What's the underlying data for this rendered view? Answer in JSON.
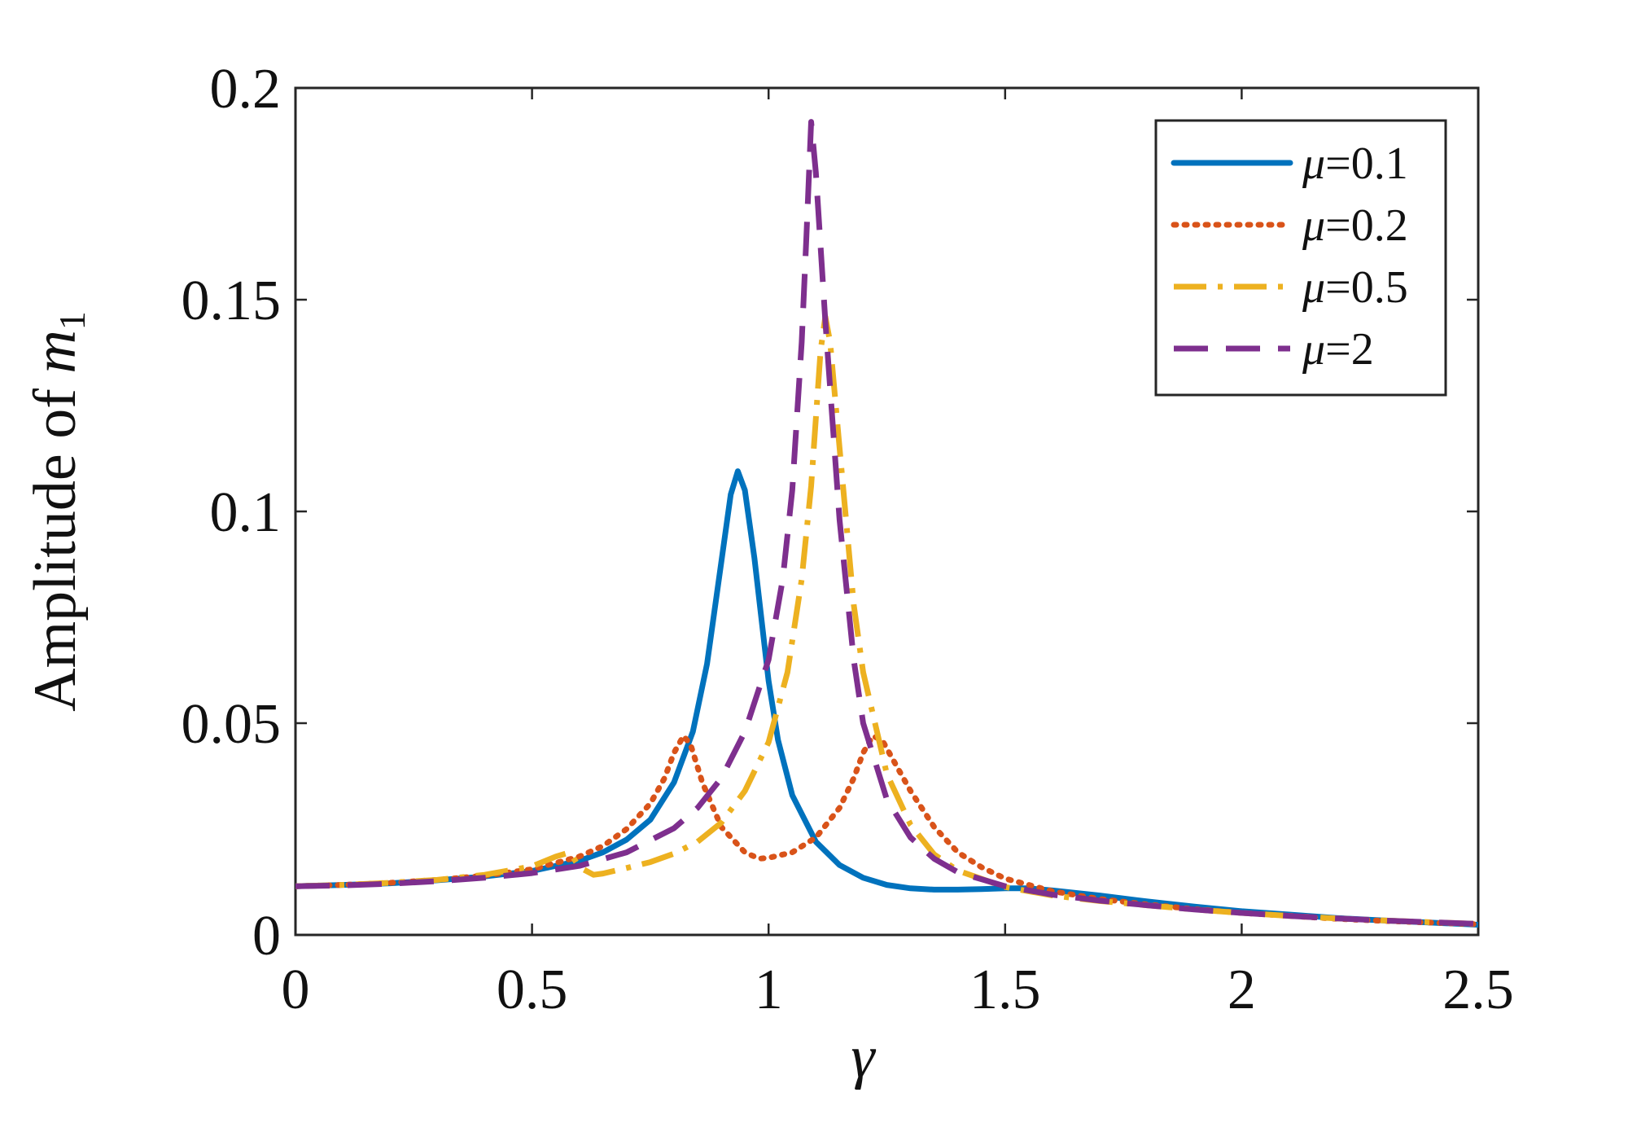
{
  "chart_data": {
    "type": "line",
    "title": "",
    "xlabel": "γ",
    "ylabel": {
      "prefix": "Amplitude of ",
      "variable": "m",
      "subscript": "1"
    },
    "xlim": [
      0,
      2.5
    ],
    "ylim": [
      0,
      0.2
    ],
    "grid": false,
    "legend_position": "top-right",
    "x_ticks": [
      0,
      0.5,
      1,
      1.5,
      2,
      2.5
    ],
    "x_tick_labels": [
      "0",
      "0.5",
      "1",
      "1.5",
      "2",
      "2.5"
    ],
    "y_ticks": [
      0,
      0.05,
      0.1,
      0.15,
      0.2
    ],
    "y_tick_labels": [
      "0",
      "0.05",
      "0.1",
      "0.15",
      "0.2"
    ],
    "series": [
      {
        "name": "μ=0.1",
        "legend_symbol": "μ",
        "legend_value": "=0.1",
        "color": "#0072BD",
        "style": "solid",
        "points": [
          [
            0,
            0.0115
          ],
          [
            0.1,
            0.0118
          ],
          [
            0.2,
            0.0122
          ],
          [
            0.3,
            0.0129
          ],
          [
            0.4,
            0.0138
          ],
          [
            0.5,
            0.0151
          ],
          [
            0.6,
            0.0175
          ],
          [
            0.65,
            0.0195
          ],
          [
            0.7,
            0.0225
          ],
          [
            0.75,
            0.0272
          ],
          [
            0.8,
            0.036
          ],
          [
            0.84,
            0.048
          ],
          [
            0.87,
            0.064
          ],
          [
            0.9,
            0.088
          ],
          [
            0.92,
            0.104
          ],
          [
            0.935,
            0.1095
          ],
          [
            0.95,
            0.105
          ],
          [
            0.97,
            0.089
          ],
          [
            1.0,
            0.06
          ],
          [
            1.02,
            0.046
          ],
          [
            1.05,
            0.033
          ],
          [
            1.1,
            0.022
          ],
          [
            1.15,
            0.0165
          ],
          [
            1.2,
            0.0135
          ],
          [
            1.25,
            0.0118
          ],
          [
            1.3,
            0.011
          ],
          [
            1.35,
            0.0107
          ],
          [
            1.4,
            0.0107
          ],
          [
            1.45,
            0.0108
          ],
          [
            1.5,
            0.011
          ],
          [
            1.55,
            0.011
          ],
          [
            1.6,
            0.0105
          ],
          [
            1.7,
            0.0093
          ],
          [
            1.8,
            0.0079
          ],
          [
            1.9,
            0.0067
          ],
          [
            2.0,
            0.0056
          ],
          [
            2.1,
            0.0048
          ],
          [
            2.2,
            0.004
          ],
          [
            2.3,
            0.0034
          ],
          [
            2.4,
            0.0029
          ],
          [
            2.5,
            0.0024
          ]
        ]
      },
      {
        "name": "μ=0.2",
        "legend_symbol": "μ",
        "legend_value": "=0.2",
        "color": "#D95319",
        "style": "dotted",
        "points": [
          [
            0,
            0.0115
          ],
          [
            0.1,
            0.0118
          ],
          [
            0.2,
            0.0123
          ],
          [
            0.3,
            0.013
          ],
          [
            0.4,
            0.014
          ],
          [
            0.5,
            0.0155
          ],
          [
            0.6,
            0.0185
          ],
          [
            0.65,
            0.021
          ],
          [
            0.7,
            0.025
          ],
          [
            0.75,
            0.031
          ],
          [
            0.78,
            0.037
          ],
          [
            0.8,
            0.043
          ],
          [
            0.82,
            0.047
          ],
          [
            0.835,
            0.045
          ],
          [
            0.86,
            0.036
          ],
          [
            0.9,
            0.0255
          ],
          [
            0.95,
            0.0195
          ],
          [
            0.98,
            0.018
          ],
          [
            1.0,
            0.0182
          ],
          [
            1.05,
            0.0195
          ],
          [
            1.1,
            0.023
          ],
          [
            1.15,
            0.03
          ],
          [
            1.18,
            0.037
          ],
          [
            1.2,
            0.043
          ],
          [
            1.22,
            0.047
          ],
          [
            1.24,
            0.046
          ],
          [
            1.27,
            0.04
          ],
          [
            1.3,
            0.034
          ],
          [
            1.35,
            0.0255
          ],
          [
            1.4,
            0.0195
          ],
          [
            1.45,
            0.016
          ],
          [
            1.5,
            0.0133
          ],
          [
            1.6,
            0.0103
          ],
          [
            1.7,
            0.0085
          ],
          [
            1.8,
            0.0072
          ],
          [
            1.9,
            0.0061
          ],
          [
            2.0,
            0.0052
          ],
          [
            2.1,
            0.0045
          ],
          [
            2.2,
            0.0038
          ],
          [
            2.3,
            0.0033
          ],
          [
            2.4,
            0.0029
          ],
          [
            2.5,
            0.0025
          ]
        ]
      },
      {
        "name": "μ=0.5",
        "legend_symbol": "μ",
        "legend_value": "=0.5",
        "color": "#EDB120",
        "style": "dashdot",
        "points": [
          [
            0,
            0.0115
          ],
          [
            0.1,
            0.0118
          ],
          [
            0.2,
            0.0123
          ],
          [
            0.3,
            0.013
          ],
          [
            0.4,
            0.0142
          ],
          [
            0.5,
            0.0162
          ],
          [
            0.55,
            0.0185
          ],
          [
            0.58,
            0.0195
          ],
          [
            0.6,
            0.016
          ],
          [
            0.63,
            0.0142
          ],
          [
            0.65,
            0.0145
          ],
          [
            0.7,
            0.0158
          ],
          [
            0.75,
            0.0172
          ],
          [
            0.8,
            0.0192
          ],
          [
            0.85,
            0.022
          ],
          [
            0.9,
            0.0265
          ],
          [
            0.95,
            0.034
          ],
          [
            1.0,
            0.0455
          ],
          [
            1.04,
            0.062
          ],
          [
            1.07,
            0.084
          ],
          [
            1.09,
            0.106
          ],
          [
            1.1,
            0.122
          ],
          [
            1.11,
            0.138
          ],
          [
            1.12,
            0.146
          ],
          [
            1.13,
            0.14
          ],
          [
            1.15,
            0.115
          ],
          [
            1.18,
            0.078
          ],
          [
            1.2,
            0.062
          ],
          [
            1.25,
            0.038
          ],
          [
            1.3,
            0.026
          ],
          [
            1.35,
            0.019
          ],
          [
            1.4,
            0.0152
          ],
          [
            1.5,
            0.0113
          ],
          [
            1.6,
            0.0093
          ],
          [
            1.7,
            0.008
          ],
          [
            1.8,
            0.007
          ],
          [
            1.9,
            0.006
          ],
          [
            2.0,
            0.0052
          ],
          [
            2.1,
            0.0045
          ],
          [
            2.2,
            0.0039
          ],
          [
            2.3,
            0.0034
          ],
          [
            2.4,
            0.003
          ],
          [
            2.5,
            0.0026
          ]
        ]
      },
      {
        "name": "μ=2",
        "legend_symbol": "μ",
        "legend_value": "=2",
        "color": "#7E2F8E",
        "style": "dashed",
        "points": [
          [
            0,
            0.0115
          ],
          [
            0.1,
            0.0117
          ],
          [
            0.2,
            0.0121
          ],
          [
            0.3,
            0.0127
          ],
          [
            0.4,
            0.0135
          ],
          [
            0.5,
            0.0146
          ],
          [
            0.6,
            0.0163
          ],
          [
            0.7,
            0.0195
          ],
          [
            0.8,
            0.0252
          ],
          [
            0.85,
            0.03
          ],
          [
            0.9,
            0.037
          ],
          [
            0.95,
            0.048
          ],
          [
            1.0,
            0.065
          ],
          [
            1.03,
            0.084
          ],
          [
            1.05,
            0.105
          ],
          [
            1.07,
            0.14
          ],
          [
            1.08,
            0.165
          ],
          [
            1.09,
            0.192
          ],
          [
            1.1,
            0.18
          ],
          [
            1.12,
            0.145
          ],
          [
            1.15,
            0.098
          ],
          [
            1.18,
            0.065
          ],
          [
            1.2,
            0.05
          ],
          [
            1.25,
            0.032
          ],
          [
            1.3,
            0.023
          ],
          [
            1.35,
            0.018
          ],
          [
            1.4,
            0.0148
          ],
          [
            1.5,
            0.0115
          ],
          [
            1.6,
            0.0095
          ],
          [
            1.7,
            0.0081
          ],
          [
            1.8,
            0.007
          ],
          [
            1.9,
            0.006
          ],
          [
            2.0,
            0.0052
          ],
          [
            2.1,
            0.0045
          ],
          [
            2.2,
            0.0039
          ],
          [
            2.3,
            0.0034
          ],
          [
            2.4,
            0.003
          ],
          [
            2.5,
            0.0026
          ]
        ]
      }
    ]
  }
}
